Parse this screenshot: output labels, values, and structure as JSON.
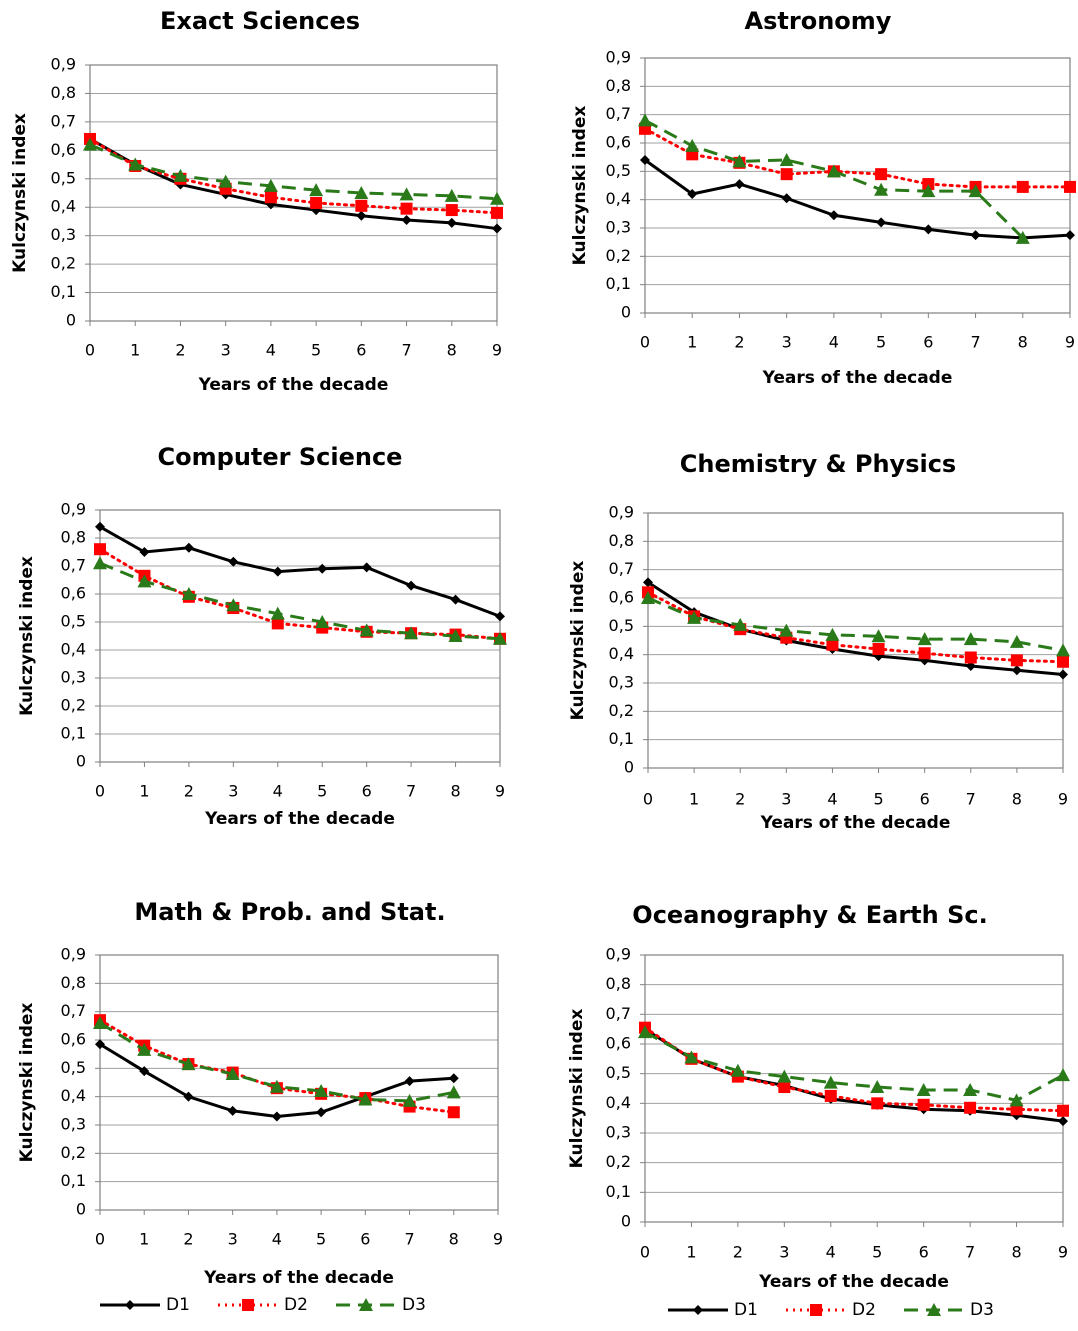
{
  "chart_data": [
    {
      "type": "line",
      "title": "Exact Sciences",
      "x_label": "Years of the decade",
      "y_label": "Kulczynski index",
      "x": [
        0,
        1,
        2,
        3,
        4,
        5,
        6,
        7,
        8,
        9
      ],
      "xlim": [
        0,
        9
      ],
      "xticks": [
        0,
        1,
        2,
        3,
        4,
        5,
        6,
        7,
        8,
        9
      ],
      "ylim": [
        0,
        0.9
      ],
      "yticks": [
        0,
        {
          "value": 0.1,
          "label": "0,1"
        },
        {
          "value": 0.2,
          "label": "0,2"
        },
        {
          "value": 0.3,
          "label": "0,3"
        },
        {
          "value": 0.4,
          "label": "0,4"
        },
        {
          "value": 0.5,
          "label": "0,5"
        },
        {
          "value": 0.6,
          "label": "0,6"
        },
        {
          "value": 0.7,
          "label": "0,7"
        },
        {
          "value": 0.8,
          "label": "0,8"
        },
        {
          "value": 0.9,
          "label": "0,9"
        }
      ],
      "grid": true,
      "legend": false,
      "series": [
        {
          "name": "D1",
          "color": "#000000",
          "line_style": "solid",
          "marker": "diamond",
          "values": [
            0.64,
            0.55,
            0.48,
            0.445,
            0.41,
            0.39,
            0.37,
            0.355,
            0.345,
            0.325
          ]
        },
        {
          "name": "D2",
          "color": "#ff0000",
          "line_style": "dotted",
          "marker": "square",
          "values": [
            0.64,
            0.545,
            0.5,
            0.465,
            0.435,
            0.415,
            0.405,
            0.395,
            0.39,
            0.38
          ]
        },
        {
          "name": "D3",
          "color": "#2a7a1a",
          "line_style": "dashed",
          "marker": "triangle",
          "values": [
            0.62,
            0.55,
            0.51,
            0.49,
            0.475,
            0.46,
            0.45,
            0.445,
            0.44,
            0.43
          ]
        }
      ]
    },
    {
      "type": "line",
      "title": "Astronomy",
      "x_label": "Years of the decade",
      "y_label": "Kulczynski index",
      "x": [
        0,
        1,
        2,
        3,
        4,
        5,
        6,
        7,
        8,
        9
      ],
      "xlim": [
        0,
        9
      ],
      "xticks": [
        0,
        1,
        2,
        3,
        4,
        5,
        6,
        7,
        8,
        9
      ],
      "ylim": [
        0,
        0.9
      ],
      "yticks": [
        0,
        {
          "value": 0.1,
          "label": "0,1"
        },
        {
          "value": 0.2,
          "label": "0,2"
        },
        {
          "value": 0.3,
          "label": "0,3"
        },
        {
          "value": 0.4,
          "label": "0,4"
        },
        {
          "value": 0.5,
          "label": "0,5"
        },
        {
          "value": 0.6,
          "label": "0,6"
        },
        {
          "value": 0.7,
          "label": "0,7"
        },
        {
          "value": 0.8,
          "label": "0,8"
        },
        {
          "value": 0.9,
          "label": "0,9"
        }
      ],
      "grid": true,
      "legend": false,
      "series": [
        {
          "name": "D1",
          "color": "#000000",
          "line_style": "solid",
          "marker": "diamond",
          "values": [
            0.54,
            0.42,
            0.455,
            0.405,
            0.345,
            0.32,
            0.295,
            0.275,
            0.265,
            0.275
          ]
        },
        {
          "name": "D2",
          "color": "#ff0000",
          "line_style": "dotted",
          "marker": "square",
          "values": [
            0.65,
            0.56,
            0.53,
            0.49,
            0.5,
            0.49,
            0.455,
            0.445,
            0.445,
            0.445
          ]
        },
        {
          "name": "D3",
          "color": "#2a7a1a",
          "line_style": "dashed",
          "marker": "triangle",
          "values": [
            0.68,
            0.59,
            0.535,
            0.54,
            0.5,
            0.435,
            0.43,
            0.43,
            0.265,
            null
          ]
        }
      ]
    },
    {
      "type": "line",
      "title": "Computer Science",
      "x_label": "Years of the decade",
      "y_label": "Kulczynski index",
      "x": [
        0,
        1,
        2,
        3,
        4,
        5,
        6,
        7,
        8,
        9
      ],
      "xlim": [
        0,
        9
      ],
      "xticks": [
        0,
        1,
        2,
        3,
        4,
        5,
        6,
        7,
        8,
        9
      ],
      "ylim": [
        0,
        0.9
      ],
      "yticks": [
        0,
        {
          "value": 0.1,
          "label": "0,1"
        },
        {
          "value": 0.2,
          "label": "0,2"
        },
        {
          "value": 0.3,
          "label": "0,3"
        },
        {
          "value": 0.4,
          "label": "0,4"
        },
        {
          "value": 0.5,
          "label": "0,5"
        },
        {
          "value": 0.6,
          "label": "0,6"
        },
        {
          "value": 0.7,
          "label": "0,7"
        },
        {
          "value": 0.8,
          "label": "0,8"
        },
        {
          "value": 0.9,
          "label": "0,9"
        }
      ],
      "grid": true,
      "legend": false,
      "series": [
        {
          "name": "D1",
          "color": "#000000",
          "line_style": "solid",
          "marker": "diamond",
          "values": [
            0.84,
            0.75,
            0.765,
            0.715,
            0.68,
            0.69,
            0.695,
            0.63,
            0.58,
            0.52
          ]
        },
        {
          "name": "D2",
          "color": "#ff0000",
          "line_style": "dotted",
          "marker": "square",
          "values": [
            0.76,
            0.665,
            0.59,
            0.55,
            0.495,
            0.48,
            0.465,
            0.46,
            0.455,
            0.44
          ]
        },
        {
          "name": "D3",
          "color": "#2a7a1a",
          "line_style": "dashed",
          "marker": "triangle",
          "values": [
            0.71,
            0.645,
            0.6,
            0.56,
            0.53,
            0.5,
            0.47,
            0.46,
            0.45,
            0.44
          ]
        }
      ]
    },
    {
      "type": "line",
      "title": "Chemistry & Physics",
      "x_label": "Years of the decade",
      "y_label": "Kulczynski index",
      "x": [
        0,
        1,
        2,
        3,
        4,
        5,
        6,
        7,
        8,
        9
      ],
      "xlim": [
        0,
        9
      ],
      "xticks": [
        0,
        1,
        2,
        3,
        4,
        5,
        6,
        7,
        8,
        9
      ],
      "ylim": [
        0,
        0.9
      ],
      "yticks": [
        0,
        {
          "value": 0.1,
          "label": "0,1"
        },
        {
          "value": 0.2,
          "label": "0,2"
        },
        {
          "value": 0.3,
          "label": "0,3"
        },
        {
          "value": 0.4,
          "label": "0,4"
        },
        {
          "value": 0.5,
          "label": "0,5"
        },
        {
          "value": 0.6,
          "label": "0,6"
        },
        {
          "value": 0.7,
          "label": "0,7"
        },
        {
          "value": 0.8,
          "label": "0,8"
        },
        {
          "value": 0.9,
          "label": "0,9"
        }
      ],
      "grid": true,
      "legend": false,
      "series": [
        {
          "name": "D1",
          "color": "#000000",
          "line_style": "solid",
          "marker": "diamond",
          "values": [
            0.655,
            0.55,
            0.49,
            0.45,
            0.42,
            0.395,
            0.38,
            0.36,
            0.345,
            0.33
          ]
        },
        {
          "name": "D2",
          "color": "#ff0000",
          "line_style": "dotted",
          "marker": "square",
          "values": [
            0.62,
            0.535,
            0.49,
            0.46,
            0.435,
            0.42,
            0.405,
            0.39,
            0.38,
            0.375
          ]
        },
        {
          "name": "D3",
          "color": "#2a7a1a",
          "line_style": "dashed",
          "marker": "triangle",
          "values": [
            0.6,
            0.53,
            0.505,
            0.485,
            0.47,
            0.465,
            0.455,
            0.455,
            0.445,
            0.415
          ]
        }
      ]
    },
    {
      "type": "line",
      "title": "Math & Prob. and Stat.",
      "x_label": "Years of the decade",
      "y_label": "Kulczynski index",
      "x": [
        0,
        1,
        2,
        3,
        4,
        5,
        6,
        7,
        8,
        9
      ],
      "xlim": [
        0,
        9
      ],
      "xticks": [
        0,
        1,
        2,
        3,
        4,
        5,
        6,
        7,
        8,
        9
      ],
      "ylim": [
        0,
        0.9
      ],
      "yticks": [
        0,
        {
          "value": 0.1,
          "label": "0,1"
        },
        {
          "value": 0.2,
          "label": "0,2"
        },
        {
          "value": 0.3,
          "label": "0,3"
        },
        {
          "value": 0.4,
          "label": "0,4"
        },
        {
          "value": 0.5,
          "label": "0,5"
        },
        {
          "value": 0.6,
          "label": "0,6"
        },
        {
          "value": 0.7,
          "label": "0,7"
        },
        {
          "value": 0.8,
          "label": "0,8"
        },
        {
          "value": 0.9,
          "label": "0,9"
        }
      ],
      "grid": true,
      "legend": true,
      "series": [
        {
          "name": "D1",
          "color": "#000000",
          "line_style": "solid",
          "marker": "diamond",
          "values": [
            0.585,
            0.49,
            0.4,
            0.35,
            0.33,
            0.345,
            0.4,
            0.455,
            0.465,
            null
          ]
        },
        {
          "name": "D2",
          "color": "#ff0000",
          "line_style": "dotted",
          "marker": "square",
          "values": [
            0.67,
            0.58,
            0.515,
            0.485,
            0.43,
            0.41,
            0.395,
            0.365,
            0.345,
            null
          ]
        },
        {
          "name": "D3",
          "color": "#2a7a1a",
          "line_style": "dashed",
          "marker": "triangle",
          "values": [
            0.66,
            0.565,
            0.515,
            0.48,
            0.435,
            0.42,
            0.39,
            0.385,
            0.415,
            null
          ]
        }
      ]
    },
    {
      "type": "line",
      "title": "Oceanography & Earth Sc.",
      "x_label": "Years of the decade",
      "y_label": "Kulczynski index",
      "x": [
        0,
        1,
        2,
        3,
        4,
        5,
        6,
        7,
        8,
        9
      ],
      "xlim": [
        0,
        9
      ],
      "xticks": [
        0,
        1,
        2,
        3,
        4,
        5,
        6,
        7,
        8,
        9
      ],
      "ylim": [
        0,
        0.9
      ],
      "yticks": [
        0,
        {
          "value": 0.1,
          "label": "0,1"
        },
        {
          "value": 0.2,
          "label": "0,2"
        },
        {
          "value": 0.3,
          "label": "0,3"
        },
        {
          "value": 0.4,
          "label": "0,4"
        },
        {
          "value": 0.5,
          "label": "0,5"
        },
        {
          "value": 0.6,
          "label": "0,6"
        },
        {
          "value": 0.7,
          "label": "0,7"
        },
        {
          "value": 0.8,
          "label": "0,8"
        },
        {
          "value": 0.9,
          "label": "0,9"
        }
      ],
      "grid": true,
      "legend": true,
      "series": [
        {
          "name": "D1",
          "color": "#000000",
          "line_style": "solid",
          "marker": "diamond",
          "values": [
            0.65,
            0.55,
            0.49,
            0.46,
            0.415,
            0.395,
            0.38,
            0.375,
            0.36,
            0.34
          ]
        },
        {
          "name": "D2",
          "color": "#ff0000",
          "line_style": "dotted",
          "marker": "square",
          "values": [
            0.655,
            0.55,
            0.49,
            0.455,
            0.425,
            0.4,
            0.395,
            0.385,
            0.38,
            0.375
          ]
        },
        {
          "name": "D3",
          "color": "#2a7a1a",
          "line_style": "dashed",
          "marker": "triangle",
          "values": [
            0.64,
            0.555,
            0.51,
            0.49,
            0.47,
            0.455,
            0.445,
            0.445,
            0.41,
            0.495
          ]
        }
      ]
    }
  ]
}
